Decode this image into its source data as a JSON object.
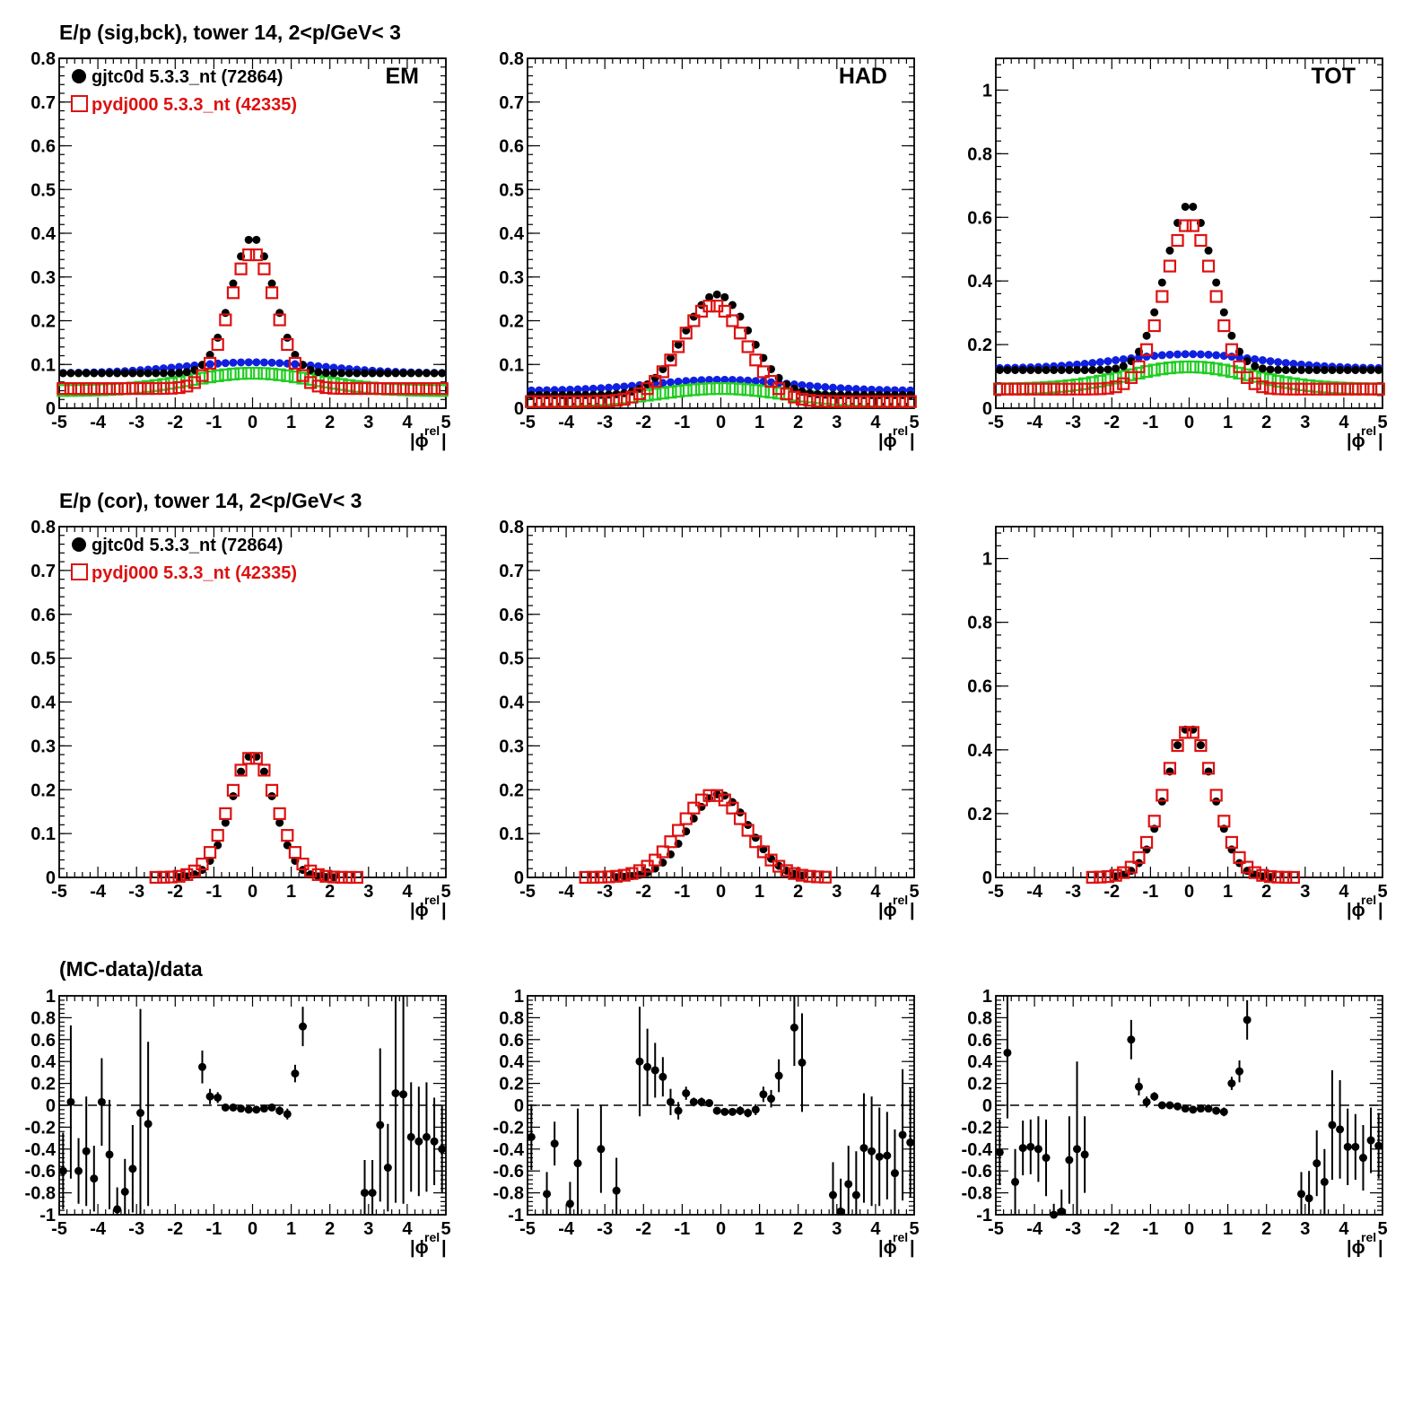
{
  "chart_data": {
    "type": "scatter",
    "legend": {
      "data_label": "gjtc0d 5.3.3_nt (72864)",
      "mc_label": "pydj000 5.3.3_nt (42335)",
      "data_color": "#000000",
      "mc_color": "#dd1111"
    },
    "colors": {
      "bck_data": "#1020e0",
      "bck_mc": "#22cc22",
      "axis": "#000000"
    },
    "xlabel_main": "|ϕ",
    "xlabel_sup": "rel",
    "xlim": [
      -5,
      5
    ],
    "xticks": [
      "-5",
      "-4",
      "-3",
      "-2",
      "-1",
      "0",
      "1",
      "2",
      "3",
      "4",
      "5"
    ],
    "rows": [
      {
        "title": "E/p (sig,bck), tower 14,  2<p/GeV< 3",
        "panels": [
          {
            "corner_label": "EM",
            "ylim": [
              0,
              0.8
            ],
            "yticks": [
              "0",
              "0.1",
              "0.2",
              "0.3",
              "0.4",
              "0.5",
              "0.6",
              "0.7",
              "0.8"
            ],
            "sig_data": {
              "center": 0,
              "amp": 0.31,
              "sigma": 0.55,
              "base": 0.08
            },
            "sig_mc": {
              "center": 0,
              "amp": 0.31,
              "sigma": 0.6,
              "base": 0.045
            },
            "bck_data": {
              "center": 0,
              "amp": 0.025,
              "sigma": 1.8,
              "base": 0.08
            },
            "bck_mc": {
              "center": 0,
              "amp": 0.04,
              "sigma": 1.6,
              "base": 0.04
            }
          },
          {
            "corner_label": "HAD",
            "ylim": [
              0,
              0.8
            ],
            "yticks": [
              "0",
              "0.1",
              "0.2",
              "0.3",
              "0.4",
              "0.5",
              "0.6",
              "0.7",
              "0.8"
            ],
            "sig_data": {
              "center": -0.1,
              "amp": 0.23,
              "sigma": 0.85,
              "base": 0.03
            },
            "sig_mc": {
              "center": -0.2,
              "amp": 0.22,
              "sigma": 0.85,
              "base": 0.015
            },
            "bck_data": {
              "center": 0,
              "amp": 0.025,
              "sigma": 1.8,
              "base": 0.04
            },
            "bck_mc": {
              "center": 0,
              "amp": 0.03,
              "sigma": 1.6,
              "base": 0.015
            }
          },
          {
            "corner_label": "TOT",
            "ylim": [
              0,
              1.1
            ],
            "yticks": [
              "0",
              "0.2",
              "0.4",
              "0.6",
              "0.8",
              "1"
            ],
            "sig_data": {
              "center": 0,
              "amp": 0.52,
              "sigma": 0.62,
              "base": 0.12
            },
            "sig_mc": {
              "center": 0,
              "amp": 0.52,
              "sigma": 0.65,
              "base": 0.06
            },
            "bck_data": {
              "center": 0,
              "amp": 0.045,
              "sigma": 1.8,
              "base": 0.125
            },
            "bck_mc": {
              "center": 0,
              "amp": 0.07,
              "sigma": 1.6,
              "base": 0.06
            }
          }
        ]
      },
      {
        "title": "E/p (cor), tower 14,  2<p/GeV< 3",
        "panels": [
          {
            "corner_label": "",
            "ylim": [
              0,
              0.8
            ],
            "yticks": [
              "0",
              "0.1",
              "0.2",
              "0.3",
              "0.4",
              "0.5",
              "0.6",
              "0.7",
              "0.8"
            ],
            "cor_data": {
              "center": 0,
              "amp": 0.28,
              "sigma": 0.55,
              "xmin": -2.0,
              "xmax": 2.2
            },
            "cor_mc": {
              "center": 0,
              "amp": 0.275,
              "sigma": 0.62,
              "xmin": -2.6,
              "xmax": 2.8
            }
          },
          {
            "corner_label": "",
            "ylim": [
              0,
              0.8
            ],
            "yticks": [
              "0",
              "0.1",
              "0.2",
              "0.3",
              "0.4",
              "0.5",
              "0.6",
              "0.7",
              "0.8"
            ],
            "cor_data": {
              "center": -0.05,
              "amp": 0.19,
              "sigma": 0.78,
              "xmin": -2.7,
              "xmax": 2.2
            },
            "cor_mc": {
              "center": -0.2,
              "amp": 0.188,
              "sigma": 0.85,
              "xmin": -3.5,
              "xmax": 2.8
            }
          },
          {
            "corner_label": "",
            "ylim": [
              0,
              1.1
            ],
            "yticks": [
              "0",
              "0.2",
              "0.4",
              "0.6",
              "0.8",
              "1"
            ],
            "cor_data": {
              "center": 0,
              "amp": 0.47,
              "sigma": 0.6,
              "xmin": -2.0,
              "xmax": 2.2
            },
            "cor_mc": {
              "center": 0,
              "amp": 0.46,
              "sigma": 0.65,
              "xmin": -2.6,
              "xmax": 2.8
            }
          }
        ]
      },
      {
        "title": "(MC-data)/data",
        "panels": [
          {
            "corner_label": "",
            "ylim": [
              -1,
              1
            ],
            "yticks": [
              "-1",
              "-0.8",
              "-0.6",
              "-0.4",
              "-0.2",
              "0",
              "0.2",
              "0.4",
              "0.6",
              "0.8",
              "1"
            ],
            "ratio": [
              {
                "x": -4.9,
                "y": -0.6,
                "e": 0.35
              },
              {
                "x": -4.7,
                "y": 0.03,
                "e": 0.7
              },
              {
                "x": -4.5,
                "y": -0.6,
                "e": 0.3
              },
              {
                "x": -4.3,
                "y": -0.42,
                "e": 0.5
              },
              {
                "x": -4.1,
                "y": -0.67,
                "e": 0.3
              },
              {
                "x": -3.9,
                "y": 0.03,
                "e": 0.4
              },
              {
                "x": -3.7,
                "y": -0.45,
                "e": 0.5
              },
              {
                "x": -3.5,
                "y": -0.95,
                "e": 0.2
              },
              {
                "x": -3.3,
                "y": -0.79,
                "e": 0.3
              },
              {
                "x": -3.1,
                "y": -0.58,
                "e": 0.4
              },
              {
                "x": -2.9,
                "y": -0.07,
                "e": 0.95
              },
              {
                "x": -2.7,
                "y": -0.17,
                "e": 0.75
              },
              {
                "x": -1.3,
                "y": 0.35,
                "e": 0.15
              },
              {
                "x": -1.1,
                "y": 0.08,
                "e": 0.07
              },
              {
                "x": -0.9,
                "y": 0.07,
                "e": 0.05
              },
              {
                "x": -0.7,
                "y": -0.02,
                "e": 0.03
              },
              {
                "x": -0.5,
                "y": -0.02,
                "e": 0.03
              },
              {
                "x": -0.3,
                "y": -0.03,
                "e": 0.02
              },
              {
                "x": -0.1,
                "y": -0.04,
                "e": 0.02
              },
              {
                "x": 0.1,
                "y": -0.04,
                "e": 0.02
              },
              {
                "x": 0.3,
                "y": -0.03,
                "e": 0.02
              },
              {
                "x": 0.5,
                "y": -0.02,
                "e": 0.03
              },
              {
                "x": 0.7,
                "y": -0.05,
                "e": 0.04
              },
              {
                "x": 0.9,
                "y": -0.08,
                "e": 0.05
              },
              {
                "x": 1.1,
                "y": 0.29,
                "e": 0.08
              },
              {
                "x": 1.3,
                "y": 0.72,
                "e": 0.18
              },
              {
                "x": 2.9,
                "y": -0.8,
                "e": 0.3
              },
              {
                "x": 3.1,
                "y": -0.8,
                "e": 0.3
              },
              {
                "x": 3.3,
                "y": -0.18,
                "e": 0.7
              },
              {
                "x": 3.5,
                "y": -0.57,
                "e": 0.4
              },
              {
                "x": 3.7,
                "y": 0.11,
                "e": 1.0
              },
              {
                "x": 3.9,
                "y": 0.1,
                "e": 1.0
              },
              {
                "x": 4.1,
                "y": -0.29,
                "e": 0.5
              },
              {
                "x": 4.3,
                "y": -0.33,
                "e": 0.5
              },
              {
                "x": 4.5,
                "y": -0.29,
                "e": 0.5
              },
              {
                "x": 4.7,
                "y": -0.33,
                "e": 0.4
              },
              {
                "x": 4.9,
                "y": -0.4,
                "e": 0.4
              }
            ]
          },
          {
            "corner_label": "",
            "ylim": [
              -1,
              1
            ],
            "yticks": [
              "-1",
              "-0.8",
              "-0.6",
              "-0.4",
              "-0.2",
              "0",
              "0.2",
              "0.4",
              "0.6",
              "0.8",
              "1"
            ],
            "ratio": [
              {
                "x": -4.9,
                "y": -0.29,
                "e": 0.3
              },
              {
                "x": -4.5,
                "y": -0.81,
                "e": 0.2
              },
              {
                "x": -4.3,
                "y": -0.35,
                "e": 0.2
              },
              {
                "x": -3.9,
                "y": -0.9,
                "e": 0.2
              },
              {
                "x": -3.7,
                "y": -0.53,
                "e": 0.5
              },
              {
                "x": -3.1,
                "y": -0.4,
                "e": 0.4
              },
              {
                "x": -2.7,
                "y": -0.78,
                "e": 0.3
              },
              {
                "x": -2.1,
                "y": 0.4,
                "e": 0.5
              },
              {
                "x": -1.9,
                "y": 0.35,
                "e": 0.35
              },
              {
                "x": -1.7,
                "y": 0.32,
                "e": 0.25
              },
              {
                "x": -1.5,
                "y": 0.26,
                "e": 0.18
              },
              {
                "x": -1.3,
                "y": 0.03,
                "e": 0.12
              },
              {
                "x": -1.1,
                "y": -0.05,
                "e": 0.08
              },
              {
                "x": -0.9,
                "y": 0.11,
                "e": 0.06
              },
              {
                "x": -0.7,
                "y": 0.03,
                "e": 0.04
              },
              {
                "x": -0.5,
                "y": 0.03,
                "e": 0.04
              },
              {
                "x": -0.3,
                "y": 0.02,
                "e": 0.03
              },
              {
                "x": -0.1,
                "y": -0.05,
                "e": 0.03
              },
              {
                "x": 0.1,
                "y": -0.06,
                "e": 0.03
              },
              {
                "x": 0.3,
                "y": -0.06,
                "e": 0.03
              },
              {
                "x": 0.5,
                "y": -0.05,
                "e": 0.04
              },
              {
                "x": 0.7,
                "y": -0.07,
                "e": 0.04
              },
              {
                "x": 0.9,
                "y": -0.04,
                "e": 0.05
              },
              {
                "x": 1.1,
                "y": 0.1,
                "e": 0.07
              },
              {
                "x": 1.3,
                "y": 0.06,
                "e": 0.08
              },
              {
                "x": 1.5,
                "y": 0.27,
                "e": 0.15
              },
              {
                "x": 1.9,
                "y": 0.71,
                "e": 0.35
              },
              {
                "x": 2.1,
                "y": 0.39,
                "e": 0.45
              },
              {
                "x": 2.9,
                "y": -0.82,
                "e": 0.3
              },
              {
                "x": 3.1,
                "y": -0.97,
                "e": 0.3
              },
              {
                "x": 3.3,
                "y": -0.72,
                "e": 0.35
              },
              {
                "x": 3.5,
                "y": -0.82,
                "e": 0.4
              },
              {
                "x": 3.7,
                "y": -0.39,
                "e": 0.5
              },
              {
                "x": 3.9,
                "y": -0.42,
                "e": 0.5
              },
              {
                "x": 4.1,
                "y": -0.47,
                "e": 0.45
              },
              {
                "x": 4.3,
                "y": -0.46,
                "e": 0.4
              },
              {
                "x": 4.5,
                "y": -0.62,
                "e": 0.4
              },
              {
                "x": 4.7,
                "y": -0.27,
                "e": 0.6
              },
              {
                "x": 4.9,
                "y": -0.34,
                "e": 0.5
              }
            ]
          },
          {
            "corner_label": "",
            "ylim": [
              -1,
              1
            ],
            "yticks": [
              "-1",
              "-0.8",
              "-0.6",
              "-0.4",
              "-0.2",
              "0",
              "0.2",
              "0.4",
              "0.6",
              "0.8",
              "1"
            ],
            "ratio": [
              {
                "x": -4.9,
                "y": -0.43,
                "e": 0.3
              },
              {
                "x": -4.7,
                "y": 0.48,
                "e": 0.6
              },
              {
                "x": -4.5,
                "y": -0.7,
                "e": 0.3
              },
              {
                "x": -4.3,
                "y": -0.39,
                "e": 0.25
              },
              {
                "x": -4.1,
                "y": -0.38,
                "e": 0.25
              },
              {
                "x": -3.9,
                "y": -0.4,
                "e": 0.3
              },
              {
                "x": -3.7,
                "y": -0.48,
                "e": 0.35
              },
              {
                "x": -3.5,
                "y": -1.0,
                "e": 0.1
              },
              {
                "x": -3.3,
                "y": -0.97,
                "e": 0.2
              },
              {
                "x": -3.1,
                "y": -0.5,
                "e": 0.4
              },
              {
                "x": -2.9,
                "y": -0.4,
                "e": 0.8
              },
              {
                "x": -2.7,
                "y": -0.45,
                "e": 0.35
              },
              {
                "x": -1.5,
                "y": 0.6,
                "e": 0.18
              },
              {
                "x": -1.3,
                "y": 0.17,
                "e": 0.08
              },
              {
                "x": -1.1,
                "y": 0.03,
                "e": 0.05
              },
              {
                "x": -0.9,
                "y": 0.08,
                "e": 0.04
              },
              {
                "x": -0.7,
                "y": 0.0,
                "e": 0.03
              },
              {
                "x": -0.5,
                "y": 0.0,
                "e": 0.03
              },
              {
                "x": -0.3,
                "y": -0.01,
                "e": 0.02
              },
              {
                "x": -0.1,
                "y": -0.03,
                "e": 0.02
              },
              {
                "x": 0.1,
                "y": -0.04,
                "e": 0.02
              },
              {
                "x": 0.3,
                "y": -0.03,
                "e": 0.02
              },
              {
                "x": 0.5,
                "y": -0.03,
                "e": 0.03
              },
              {
                "x": 0.7,
                "y": -0.05,
                "e": 0.03
              },
              {
                "x": 0.9,
                "y": -0.06,
                "e": 0.04
              },
              {
                "x": 1.1,
                "y": 0.2,
                "e": 0.06
              },
              {
                "x": 1.3,
                "y": 0.31,
                "e": 0.1
              },
              {
                "x": 1.5,
                "y": 0.78,
                "e": 0.18
              },
              {
                "x": 2.9,
                "y": -0.81,
                "e": 0.2
              },
              {
                "x": 3.1,
                "y": -0.85,
                "e": 0.25
              },
              {
                "x": 3.3,
                "y": -0.53,
                "e": 0.3
              },
              {
                "x": 3.5,
                "y": -0.7,
                "e": 0.3
              },
              {
                "x": 3.7,
                "y": -0.18,
                "e": 0.5
              },
              {
                "x": 3.9,
                "y": -0.22,
                "e": 0.45
              },
              {
                "x": 4.1,
                "y": -0.38,
                "e": 0.35
              },
              {
                "x": 4.3,
                "y": -0.38,
                "e": 0.3
              },
              {
                "x": 4.5,
                "y": -0.48,
                "e": 0.3
              },
              {
                "x": 4.7,
                "y": -0.32,
                "e": 0.3
              },
              {
                "x": 4.9,
                "y": -0.37,
                "e": 0.3
              }
            ]
          }
        ]
      }
    ]
  }
}
